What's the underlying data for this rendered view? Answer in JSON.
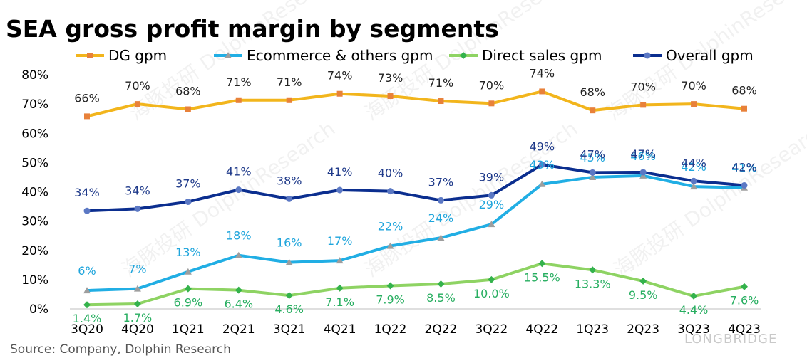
{
  "title": "SEA gross profit margin by segments",
  "source": "Source: Company, Dolphin Research",
  "watermark": "海豚投研 DolphinResearch",
  "brand_mark": "LONGBRIDGE",
  "chart_data": {
    "type": "line",
    "categories": [
      "3Q20",
      "4Q20",
      "1Q21",
      "2Q21",
      "3Q21",
      "4Q21",
      "1Q22",
      "2Q22",
      "3Q22",
      "4Q22",
      "1Q23",
      "2Q23",
      "3Q23",
      "4Q23"
    ],
    "ylim": [
      0,
      80
    ],
    "yticks": [
      0,
      10,
      20,
      30,
      40,
      50,
      60,
      70,
      80
    ],
    "ytick_labels": [
      "0%",
      "10%",
      "20%",
      "30%",
      "40%",
      "50%",
      "60%",
      "70%",
      "80%"
    ],
    "grid": false,
    "legend_position": "top",
    "series": [
      {
        "name": "DG gpm",
        "color": "#F2B51C",
        "label_color": "#222222",
        "marker": "square",
        "marker_color": "#E8813A",
        "values": [
          65.8,
          70.0,
          68.2,
          71.3,
          71.3,
          73.5,
          72.7,
          71.0,
          70.2,
          74.3,
          67.8,
          69.7,
          70.0,
          68.4
        ],
        "labels": [
          "66%",
          "70%",
          "68%",
          "71%",
          "71%",
          "74%",
          "73%",
          "71%",
          "70%",
          "74%",
          "68%",
          "70%",
          "70%",
          "68%"
        ]
      },
      {
        "name": "Ecommerce & others gpm",
        "color": "#21AEE4",
        "label_color": "#1FA5DC",
        "marker": "triangle",
        "marker_color": "#9E9E9E",
        "values": [
          6.3,
          6.9,
          12.7,
          18.3,
          15.9,
          16.5,
          21.5,
          24.3,
          28.9,
          42.6,
          45.0,
          45.5,
          41.8,
          41.4
        ],
        "labels": [
          "6%",
          "7%",
          "13%",
          "18%",
          "16%",
          "17%",
          "22%",
          "24%",
          "29%",
          "43%",
          "45%",
          "46%",
          "42%",
          "41%"
        ]
      },
      {
        "name": "Direct sales gpm",
        "color": "#8ED363",
        "label_color": "#27AE60",
        "marker": "diamond",
        "marker_color": "#34B24C",
        "values": [
          1.4,
          1.7,
          6.9,
          6.4,
          4.6,
          7.1,
          7.9,
          8.5,
          10.0,
          15.5,
          13.3,
          9.5,
          4.4,
          7.6
        ],
        "labels": [
          "1.4%",
          "1.7%",
          "6.9%",
          "6.4%",
          "4.6%",
          "7.1%",
          "7.9%",
          "8.5%",
          "10.0%",
          "15.5%",
          "13.3%",
          "9.5%",
          "4.4%",
          "7.6%"
        ]
      },
      {
        "name": "Overall gpm",
        "color": "#0B2E8F",
        "label_color": "#1F3A8A",
        "marker": "circle",
        "marker_color": "#5B78C4",
        "values": [
          33.5,
          34.2,
          36.6,
          40.7,
          37.6,
          40.6,
          40.2,
          37.1,
          38.8,
          49.3,
          46.6,
          46.7,
          43.7,
          42.2
        ],
        "labels": [
          "34%",
          "34%",
          "37%",
          "41%",
          "38%",
          "41%",
          "40%",
          "37%",
          "39%",
          "49%",
          "47%",
          "47%",
          "44%",
          "42%"
        ]
      }
    ]
  }
}
